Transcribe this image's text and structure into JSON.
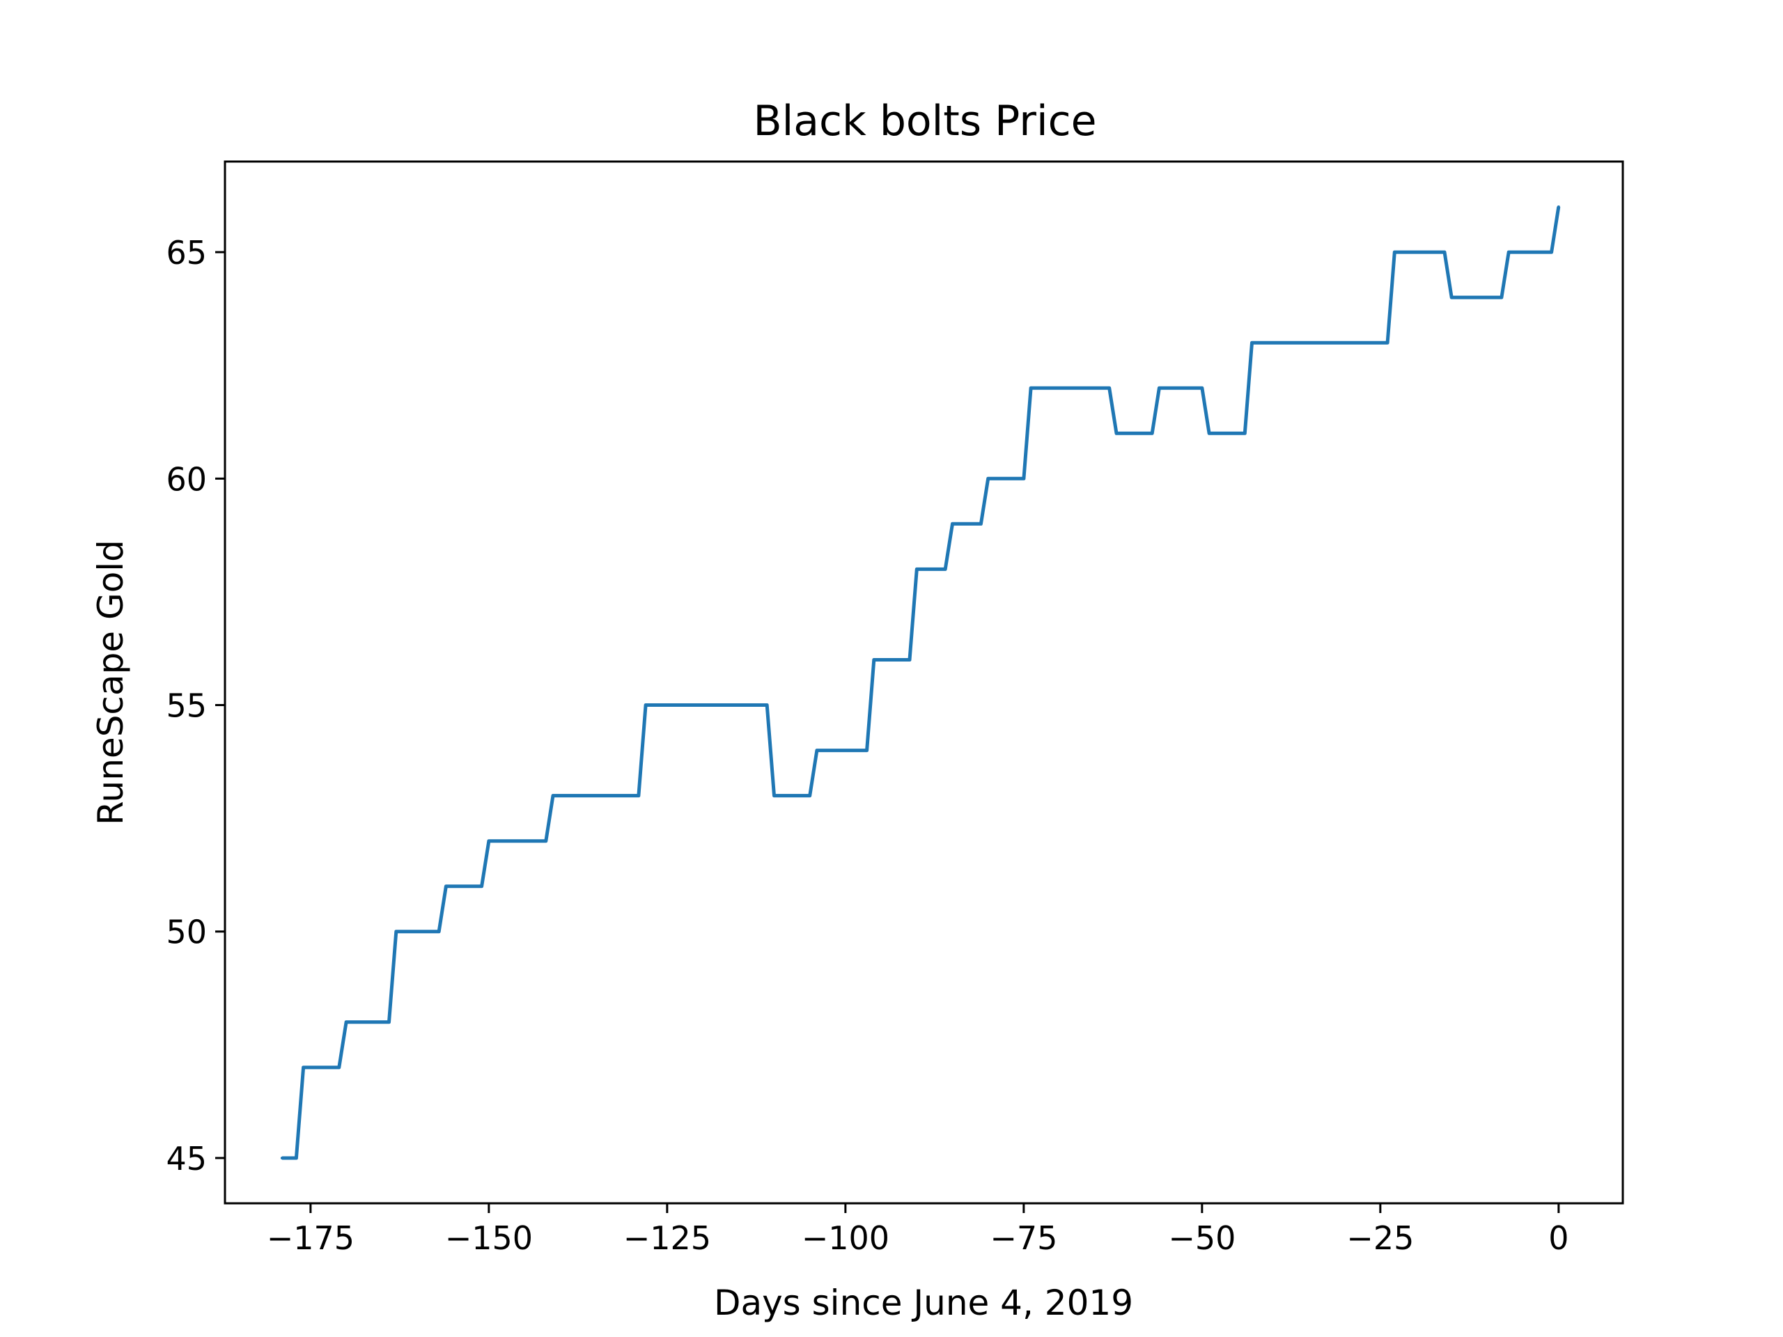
{
  "chart_data": {
    "type": "line",
    "title": "Black bolts Price",
    "xlabel": "Days since June 4, 2019",
    "ylabel": "RuneScape Gold",
    "xlim": [
      -187,
      9
    ],
    "ylim": [
      44,
      67
    ],
    "x_ticks": [
      -175,
      -150,
      -125,
      -100,
      -75,
      -50,
      -25,
      0
    ],
    "x_tick_labels": [
      "−175",
      "−150",
      "−125",
      "−100",
      "−75",
      "−50",
      "−25",
      "0"
    ],
    "y_ticks": [
      45,
      50,
      55,
      60,
      65
    ],
    "y_tick_labels": [
      "45",
      "50",
      "55",
      "60",
      "65"
    ],
    "grid": false,
    "legend": "none",
    "line_color": "#1f77b4",
    "series": [
      {
        "x": [
          -179,
          -177,
          -176,
          -171,
          -170,
          -164,
          -163,
          -157,
          -156,
          -151,
          -150,
          -142,
          -141,
          -129,
          -128,
          -111,
          -110,
          -105,
          -104,
          -97,
          -96,
          -91,
          -90,
          -86,
          -85,
          -81,
          -80,
          -75,
          -74,
          -63,
          -62,
          -57,
          -56,
          -50,
          -49,
          -44,
          -43,
          -24,
          -23,
          -16,
          -15,
          -8,
          -7,
          -1,
          0
        ],
        "y": [
          45,
          45,
          47,
          47,
          48,
          48,
          50,
          50,
          51,
          51,
          52,
          52,
          53,
          53,
          55,
          55,
          53,
          53,
          54,
          54,
          56,
          56,
          58,
          58,
          59,
          59,
          60,
          60,
          62,
          62,
          61,
          61,
          62,
          62,
          61,
          61,
          63,
          63,
          65,
          65,
          64,
          64,
          65,
          65,
          66
        ]
      }
    ]
  }
}
